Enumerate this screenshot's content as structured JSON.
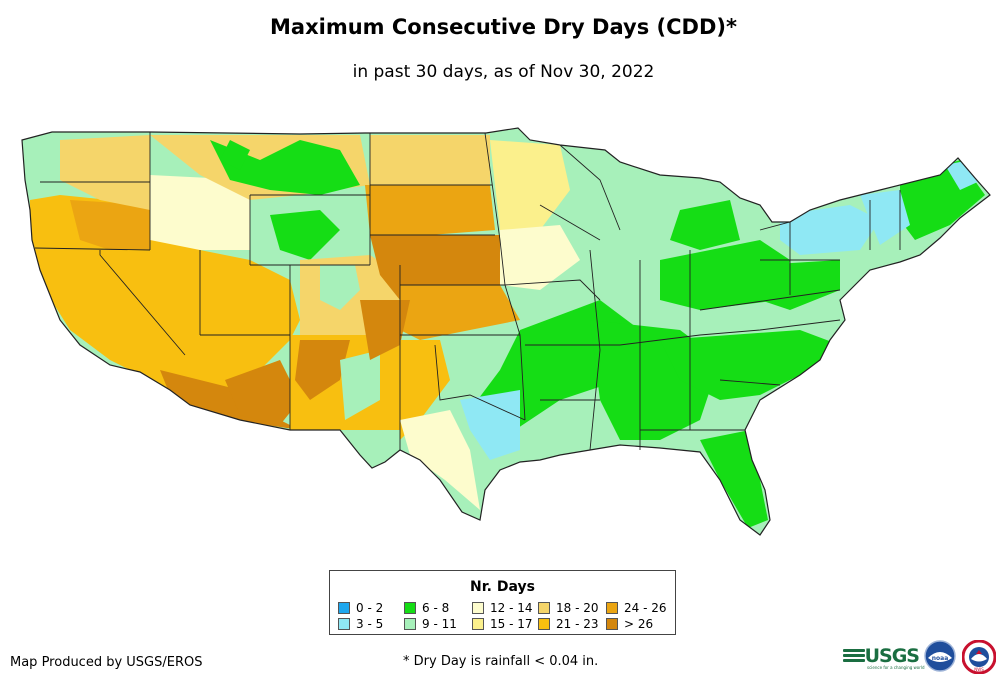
{
  "title": "Maximum Consecutive Dry Days (CDD)*",
  "subtitle": "in past 30 days, as of Nov 30, 2022",
  "legend": {
    "title": "Nr. Days",
    "items": [
      {
        "label": "0 - 2",
        "color": "#1ea7ee"
      },
      {
        "label": "3 - 5",
        "color": "#8fe8f4"
      },
      {
        "label": "6 - 8",
        "color": "#15dd15"
      },
      {
        "label": "9 - 11",
        "color": "#a7f0ba"
      },
      {
        "label": "12 - 14",
        "color": "#fdfccd"
      },
      {
        "label": "15 - 17",
        "color": "#fbf08c"
      },
      {
        "label": "18 - 20",
        "color": "#f5d56a"
      },
      {
        "label": "21 - 23",
        "color": "#f8bf10"
      },
      {
        "label": "24 - 26",
        "color": "#eba512"
      },
      {
        "label": "> 26",
        "color": "#d4870d"
      }
    ]
  },
  "footer": {
    "credit": "Map Produced by USGS/EROS",
    "footnote": "* Dry Day is rainfall < 0.04 in."
  },
  "logos": {
    "usgs": "USGS",
    "usgs_tagline": "science for a changing world",
    "noaa": "noaa",
    "nws": "NWS"
  }
}
